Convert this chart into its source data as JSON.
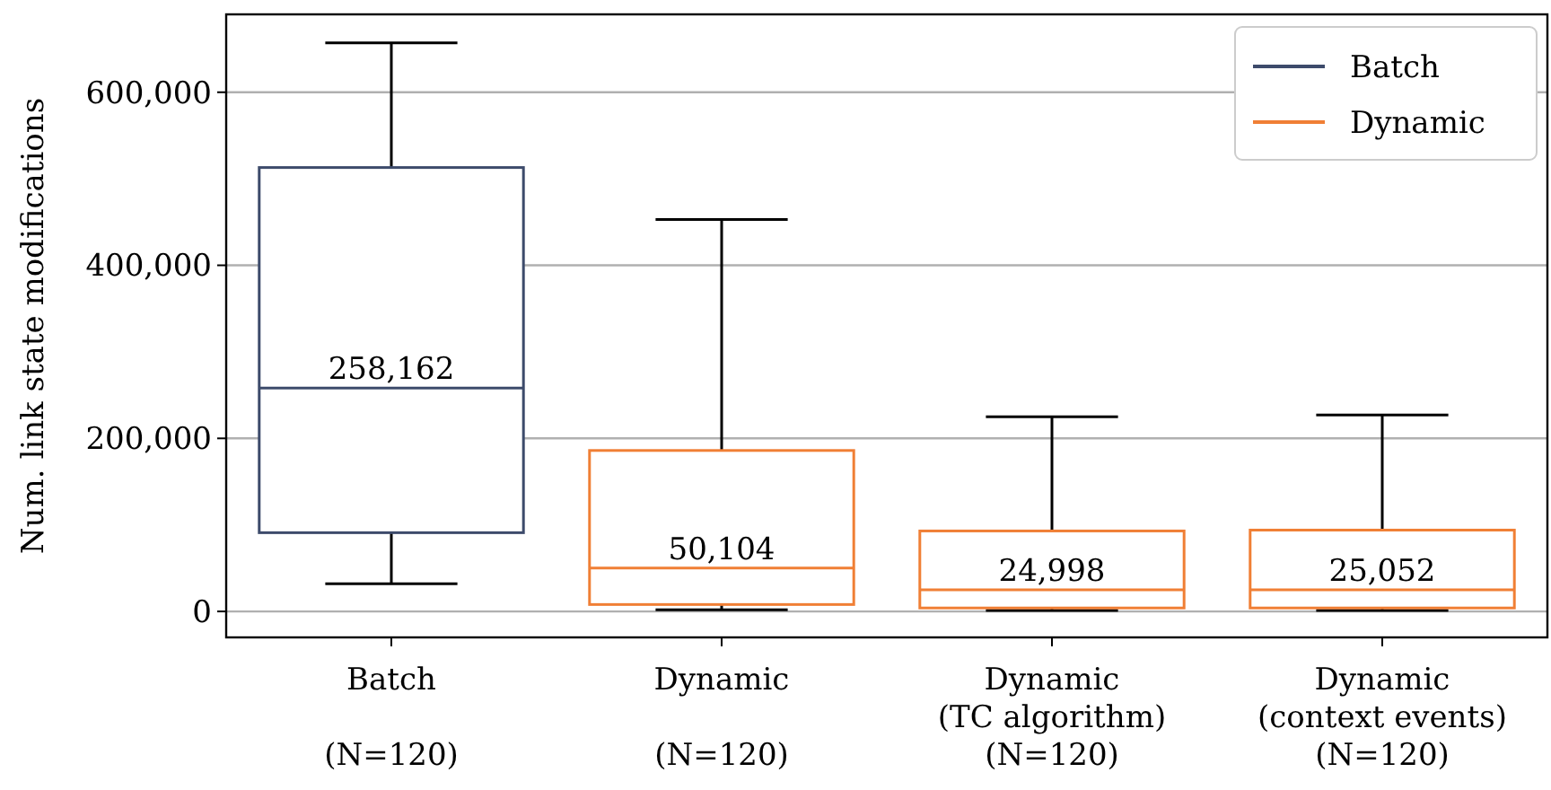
{
  "chart_data": {
    "type": "box",
    "ylabel": "Num. link state modifications",
    "categories": [
      "Batch\n\n(N=120)",
      "Dynamic\n\n(N=120)",
      "Dynamic\n(TC algorithm)\n(N=120)",
      "Dynamic\n(context events)\n(N=120)"
    ],
    "series": [
      {
        "name": "Batch",
        "color": "#3d4b6b",
        "value_labels": [
          "258,162",
          null,
          null,
          null
        ],
        "boxes": [
          {
            "low": 32000,
            "q1": 91000,
            "median": 258162,
            "q3": 513000,
            "high": 657000
          },
          null,
          null,
          null
        ]
      },
      {
        "name": "Dynamic",
        "color": "#f07f35",
        "value_labels": [
          null,
          "50,104",
          "24,998",
          "25,052"
        ],
        "boxes": [
          null,
          {
            "low": 2000,
            "q1": 8000,
            "median": 50104,
            "q3": 186000,
            "high": 453000
          },
          {
            "low": 1000,
            "q1": 4000,
            "median": 24998,
            "q3": 93000,
            "high": 225000
          },
          {
            "low": 1000,
            "q1": 4000,
            "median": 25052,
            "q3": 94000,
            "high": 227000
          }
        ]
      }
    ],
    "ylim": [
      -30000,
      690000
    ],
    "yticks": [
      0,
      {
        "value": 200000,
        "label": "200,000"
      },
      {
        "value": 400000,
        "label": "400,000"
      },
      {
        "value": 600000,
        "label": "600,000"
      }
    ],
    "grid": "y",
    "legend": "top right"
  }
}
